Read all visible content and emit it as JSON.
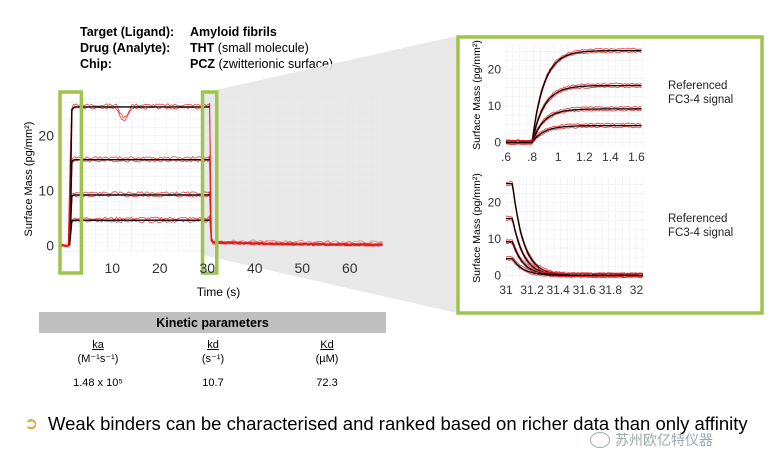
{
  "info": {
    "target_label": "Target (Ligand):",
    "target_value": "Amyloid fibrils",
    "drug_label": "Drug (Analyte):",
    "drug_value": "THT",
    "drug_note": "(small molecule)",
    "chip_label": "Chip:",
    "chip_value": "PCZ",
    "chip_note": "(zwitterionic surface)"
  },
  "colors": {
    "highlight": "#9ec44c",
    "fit": "#000000",
    "data": "#e41a1c",
    "zoom_fill": "#e6e6e6"
  },
  "chart_data": [
    {
      "type": "line",
      "title": "",
      "xlabel": "Time (s)",
      "ylabel": "Surface Mass (pg/mm²)",
      "xlim": [
        -1,
        67
      ],
      "ylim": [
        -1,
        27
      ],
      "xticks": [
        "10",
        "20",
        "30",
        "40",
        "50",
        "60"
      ],
      "yticks": [
        "0",
        "10",
        "20"
      ],
      "highlight_windows": [
        [
          -1,
          3.5
        ],
        [
          29,
          32
        ]
      ],
      "series": [
        {
          "values_x": [
            -1,
            1,
            1.4,
            30.5,
            31,
            67
          ],
          "values_y": [
            0,
            0,
            25.2,
            25.2,
            0.5,
            0
          ]
        },
        {
          "values_x": [
            -1,
            1,
            1.4,
            30.5,
            31,
            67
          ],
          "values_y": [
            0,
            0,
            15.6,
            15.6,
            0.5,
            0
          ]
        },
        {
          "values_x": [
            -1,
            1,
            1.4,
            30.5,
            31,
            67
          ],
          "values_y": [
            0,
            0,
            9.2,
            9.2,
            0.5,
            0
          ]
        },
        {
          "values_x": [
            -1,
            1,
            1.4,
            30.5,
            31,
            67
          ],
          "values_y": [
            0,
            0,
            4.6,
            4.6,
            0.5,
            0
          ]
        }
      ]
    },
    {
      "type": "line",
      "title": "",
      "xlabel": "",
      "ylabel": "Surface Mass (pg/mm²)",
      "xlim": [
        0.6,
        1.65
      ],
      "ylim": [
        -1,
        27
      ],
      "xticks": [
        ".6",
        ".8",
        "1",
        "1.2",
        "1.4",
        "1.6"
      ],
      "yticks": [
        "0",
        "10",
        "20"
      ],
      "annotation": "Referenced FC3-4 signal",
      "plateaus": [
        25.2,
        15.6,
        9.2,
        4.6
      ]
    },
    {
      "type": "line",
      "title": "",
      "xlabel": "",
      "ylabel": "Surface Mass (pg/mm²)",
      "xlim": [
        31.0,
        32.05
      ],
      "ylim": [
        -1,
        27
      ],
      "xticks": [
        "31",
        "31.2",
        "31.4",
        "31.6",
        "31.8",
        "32"
      ],
      "yticks": [
        "0",
        "10",
        "20"
      ],
      "annotation": "Referenced FC3-4 signal",
      "plateaus": [
        25.2,
        15.6,
        9.2,
        4.6
      ]
    }
  ],
  "kinetics": {
    "header": "Kinetic parameters",
    "cols": [
      {
        "name": "ka",
        "unit": "(M⁻¹s⁻¹)",
        "value": "1.48 x 10⁵"
      },
      {
        "name": "kd",
        "unit": "(s⁻¹)",
        "value": "10.7"
      },
      {
        "name": "Kd",
        "unit": "(µM)",
        "value": "72.3"
      }
    ]
  },
  "bullet": "Weak binders can be characterised and ranked based on richer data than only affinity",
  "watermark": "苏州欧亿特仪器"
}
